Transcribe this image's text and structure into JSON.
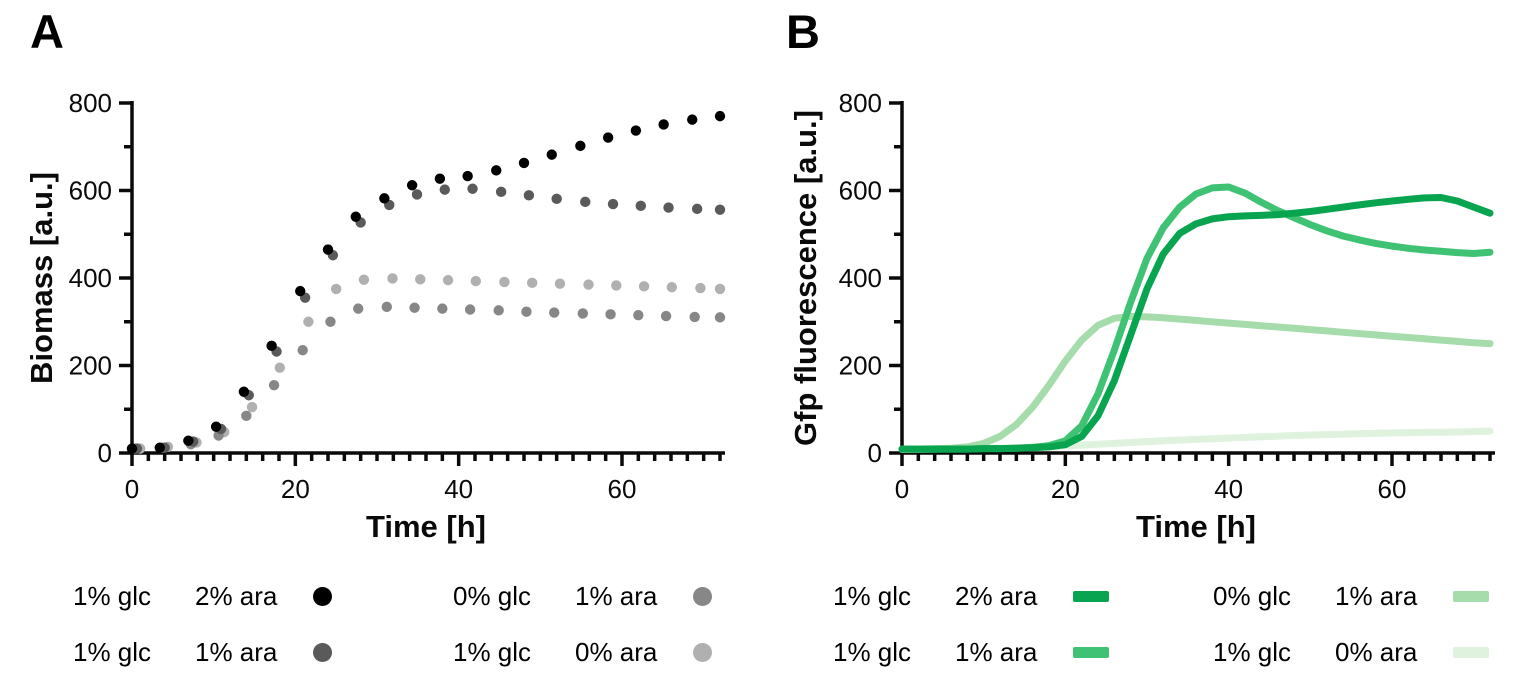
{
  "figure": {
    "background": "#ffffff"
  },
  "chart_data": [
    {
      "panel": "A",
      "type": "scatter",
      "title": "",
      "xlabel": "Time [h]",
      "ylabel": "Biomass [a.u.]",
      "xlim": [
        0,
        72
      ],
      "ylim": [
        0,
        800
      ],
      "x_major_ticks": [
        0,
        20,
        40,
        60
      ],
      "x_minor_tick_step": 2,
      "y_major_ticks": [
        0,
        200,
        400,
        600,
        800
      ],
      "y_minor_ticks": [
        100,
        300,
        500,
        700
      ],
      "grid": false,
      "legend_position": "below",
      "series": [
        {
          "name": "1% glc 0% ara",
          "color": "#b0b0b0",
          "points": [
            [
              1,
              10
            ],
            [
              4.4,
              14
            ],
            [
              7.9,
              24
            ],
            [
              11.3,
              48
            ],
            [
              14.7,
              105
            ],
            [
              18.1,
              195
            ],
            [
              21.6,
              300
            ],
            [
              25,
              375
            ],
            [
              28.4,
              396
            ],
            [
              31.9,
              399
            ],
            [
              35.3,
              397
            ],
            [
              38.7,
              395
            ],
            [
              42.1,
              393
            ],
            [
              45.6,
              391
            ],
            [
              49,
              389
            ],
            [
              52.4,
              387
            ],
            [
              55.9,
              385
            ],
            [
              59.3,
              383
            ],
            [
              62.7,
              381
            ],
            [
              66.1,
              379
            ],
            [
              69.6,
              377
            ],
            [
              72,
              375
            ]
          ]
        },
        {
          "name": "0% glc 1% ara",
          "color": "#878787",
          "points": [
            [
              0.3,
              10
            ],
            [
              3.7,
              12
            ],
            [
              7.2,
              20
            ],
            [
              10.6,
              40
            ],
            [
              14,
              85
            ],
            [
              17.4,
              155
            ],
            [
              20.9,
              235
            ],
            [
              24.3,
              300
            ],
            [
              27.7,
              330
            ],
            [
              31.2,
              334
            ],
            [
              34.6,
              332
            ],
            [
              38,
              330
            ],
            [
              41.4,
              328
            ],
            [
              44.9,
              326
            ],
            [
              48.3,
              323
            ],
            [
              51.7,
              321
            ],
            [
              55.2,
              319
            ],
            [
              58.6,
              317
            ],
            [
              62,
              315
            ],
            [
              65.4,
              313
            ],
            [
              68.9,
              311
            ],
            [
              72,
              310
            ]
          ]
        },
        {
          "name": "1% glc 1% ara",
          "color": "#5a5a5a",
          "points": [
            [
              0.6,
              10
            ],
            [
              4,
              12
            ],
            [
              7.5,
              26
            ],
            [
              10.9,
              55
            ],
            [
              14.3,
              132
            ],
            [
              17.7,
              232
            ],
            [
              21.2,
              355
            ],
            [
              24.6,
              452
            ],
            [
              28,
              527
            ],
            [
              31.5,
              567
            ],
            [
              34.9,
              591
            ],
            [
              38.3,
              602
            ],
            [
              41.7,
              604
            ],
            [
              45.2,
              597
            ],
            [
              48.6,
              589
            ],
            [
              52,
              581
            ],
            [
              55.5,
              574
            ],
            [
              58.9,
              569
            ],
            [
              62.3,
              565
            ],
            [
              65.7,
              561
            ],
            [
              69.2,
              558
            ],
            [
              72,
              556
            ]
          ]
        },
        {
          "name": "1% glc 2% ara",
          "color": "#000000",
          "points": [
            [
              0,
              10
            ],
            [
              3.4,
              12
            ],
            [
              6.9,
              28
            ],
            [
              10.3,
              60
            ],
            [
              13.7,
              140
            ],
            [
              17.1,
              245
            ],
            [
              20.6,
              370
            ],
            [
              24,
              465
            ],
            [
              27.4,
              540
            ],
            [
              30.9,
              582
            ],
            [
              34.3,
              612
            ],
            [
              37.7,
              627
            ],
            [
              41.1,
              633
            ],
            [
              44.6,
              646
            ],
            [
              48,
              663
            ],
            [
              51.4,
              682
            ],
            [
              54.9,
              702
            ],
            [
              58.3,
              721
            ],
            [
              61.7,
              737
            ],
            [
              65.1,
              751
            ],
            [
              68.6,
              762
            ],
            [
              72,
              770
            ]
          ]
        }
      ],
      "legend": [
        {
          "glc": "1% glc",
          "ara": "2% ara",
          "color": "#000000"
        },
        {
          "glc": "0% glc",
          "ara": "1% ara",
          "color": "#878787"
        },
        {
          "glc": "1% glc",
          "ara": "1% ara",
          "color": "#5a5a5a"
        },
        {
          "glc": "1% glc",
          "ara": "0% ara",
          "color": "#b0b0b0"
        }
      ]
    },
    {
      "panel": "B",
      "type": "line",
      "title": "",
      "xlabel": "Time [h]",
      "ylabel": "Gfp fluorescence [a.u.]",
      "xlim": [
        0,
        72
      ],
      "ylim": [
        0,
        800
      ],
      "x_major_ticks": [
        0,
        20,
        40,
        60
      ],
      "x_minor_tick_step": 2,
      "y_major_ticks": [
        0,
        200,
        400,
        600,
        800
      ],
      "y_minor_ticks": [
        100,
        300,
        500,
        700
      ],
      "grid": false,
      "legend_position": "below",
      "series": [
        {
          "name": "1% glc 0% ara",
          "color": "#def2dd",
          "points": [
            [
              0,
              8
            ],
            [
              4,
              9
            ],
            [
              8,
              10
            ],
            [
              12,
              11
            ],
            [
              16,
              13
            ],
            [
              20,
              16
            ],
            [
              24,
              20
            ],
            [
              28,
              24
            ],
            [
              32,
              28
            ],
            [
              36,
              31
            ],
            [
              40,
              34
            ],
            [
              44,
              37
            ],
            [
              48,
              40
            ],
            [
              52,
              42
            ],
            [
              56,
              44
            ],
            [
              60,
              46
            ],
            [
              64,
              47
            ],
            [
              68,
              48
            ],
            [
              72,
              50
            ]
          ]
        },
        {
          "name": "0% glc 1% ara",
          "color": "#a6dcab",
          "points": [
            [
              0,
              9
            ],
            [
              2,
              9
            ],
            [
              4,
              10
            ],
            [
              6,
              11
            ],
            [
              8,
              14
            ],
            [
              10,
              22
            ],
            [
              12,
              38
            ],
            [
              14,
              65
            ],
            [
              16,
              105
            ],
            [
              18,
              155
            ],
            [
              20,
              210
            ],
            [
              22,
              258
            ],
            [
              24,
              292
            ],
            [
              26,
              308
            ],
            [
              28,
              312
            ],
            [
              30,
              311
            ],
            [
              32,
              309
            ],
            [
              34,
              306
            ],
            [
              36,
              303
            ],
            [
              38,
              300
            ],
            [
              40,
              297
            ],
            [
              42,
              294
            ],
            [
              44,
              291
            ],
            [
              46,
              288
            ],
            [
              48,
              285
            ],
            [
              50,
              282
            ],
            [
              52,
              279
            ],
            [
              54,
              276
            ],
            [
              56,
              273
            ],
            [
              58,
              270
            ],
            [
              60,
              267
            ],
            [
              62,
              264
            ],
            [
              64,
              261
            ],
            [
              66,
              258
            ],
            [
              68,
              255
            ],
            [
              70,
              252
            ],
            [
              72,
              250
            ]
          ]
        },
        {
          "name": "1% glc 1% ara",
          "color": "#3fc273",
          "points": [
            [
              0,
              9
            ],
            [
              2,
              9
            ],
            [
              4,
              9
            ],
            [
              6,
              9
            ],
            [
              8,
              9
            ],
            [
              10,
              10
            ],
            [
              12,
              10
            ],
            [
              14,
              11
            ],
            [
              16,
              13
            ],
            [
              18,
              17
            ],
            [
              20,
              28
            ],
            [
              22,
              62
            ],
            [
              24,
              135
            ],
            [
              26,
              235
            ],
            [
              28,
              345
            ],
            [
              30,
              445
            ],
            [
              32,
              515
            ],
            [
              34,
              562
            ],
            [
              36,
              592
            ],
            [
              38,
              606
            ],
            [
              40,
              608
            ],
            [
              42,
              594
            ],
            [
              44,
              573
            ],
            [
              46,
              554
            ],
            [
              48,
              538
            ],
            [
              50,
              522
            ],
            [
              52,
              508
            ],
            [
              54,
              496
            ],
            [
              56,
              487
            ],
            [
              58,
              479
            ],
            [
              60,
              473
            ],
            [
              62,
              468
            ],
            [
              64,
              464
            ],
            [
              66,
              461
            ],
            [
              68,
              458
            ],
            [
              70,
              456
            ],
            [
              72,
              459
            ]
          ]
        },
        {
          "name": "1% glc 2% ara",
          "color": "#09a44f",
          "points": [
            [
              0,
              9
            ],
            [
              2,
              9
            ],
            [
              4,
              9
            ],
            [
              6,
              9
            ],
            [
              8,
              9
            ],
            [
              10,
              10
            ],
            [
              12,
              10
            ],
            [
              14,
              11
            ],
            [
              16,
              12
            ],
            [
              18,
              14
            ],
            [
              20,
              19
            ],
            [
              22,
              38
            ],
            [
              24,
              85
            ],
            [
              26,
              165
            ],
            [
              28,
              270
            ],
            [
              30,
              375
            ],
            [
              32,
              455
            ],
            [
              34,
              502
            ],
            [
              36,
              524
            ],
            [
              38,
              535
            ],
            [
              40,
              540
            ],
            [
              42,
              542
            ],
            [
              44,
              543
            ],
            [
              46,
              545
            ],
            [
              48,
              548
            ],
            [
              50,
              552
            ],
            [
              52,
              557
            ],
            [
              54,
              562
            ],
            [
              56,
              567
            ],
            [
              58,
              572
            ],
            [
              60,
              576
            ],
            [
              62,
              580
            ],
            [
              64,
              583
            ],
            [
              66,
              584
            ],
            [
              68,
              576
            ],
            [
              70,
              562
            ],
            [
              72,
              548
            ]
          ]
        }
      ],
      "legend": [
        {
          "glc": "1% glc",
          "ara": "2% ara",
          "color": "#09a44f"
        },
        {
          "glc": "0% glc",
          "ara": "1% ara",
          "color": "#a6dcab"
        },
        {
          "glc": "1% glc",
          "ara": "1% ara",
          "color": "#3fc273"
        },
        {
          "glc": "1% glc",
          "ara": "0% ara",
          "color": "#def2dd"
        }
      ]
    }
  ]
}
